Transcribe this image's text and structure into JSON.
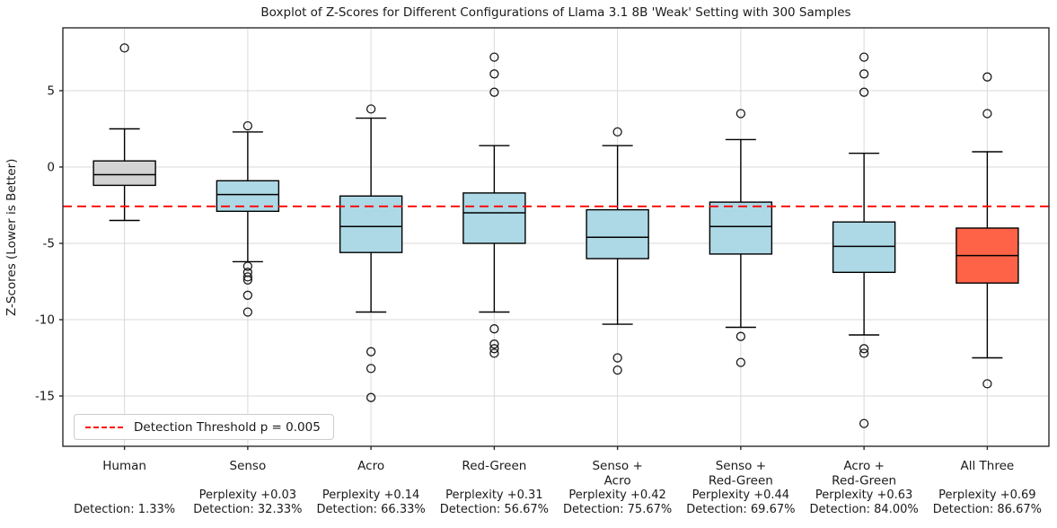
{
  "title": "Boxplot of Z-Scores for Different Configurations of Llama 3.1 8B 'Weak' Setting with 300 Samples",
  "y_axis": {
    "label": "Z-Scores (Lower is Better)",
    "ticks": [
      5,
      0,
      -5,
      -10,
      -15
    ]
  },
  "legend": {
    "label": "Detection Threshold p = 0.005"
  },
  "threshold": {
    "value": -2.576,
    "color": "#ff0000",
    "label": "Detection Threshold p = 0.005"
  },
  "colors": {
    "box_default": "#add8e6",
    "box_human": "#d3d3d3",
    "box_highlight": "#ff6347",
    "threshold_line": "#ff0000",
    "gridline": "#d9d9d9",
    "frame": "#2b2b2b"
  },
  "chart_data": {
    "type": "boxplot",
    "title": "Boxplot of Z-Scores for Different Configurations of Llama 3.1 8B 'Weak' Setting with 300 Samples",
    "ylabel": "Z-Scores (Lower is Better)",
    "ylim": [
      -18.3,
      9.2
    ],
    "grid": true,
    "legend_position": "lower left",
    "categories": [
      "Human",
      "Senso",
      "Acro",
      "Red-Green",
      "Senso + Acro",
      "Senso + Red-Green",
      "Acro + Red-Green",
      "All Three"
    ],
    "boxes": [
      {
        "label_lines": [
          "Human"
        ],
        "perplexity": "",
        "detection": "Detection: 1.33%",
        "whisker_low": -3.5,
        "q1": -1.2,
        "median": -0.5,
        "q3": 0.4,
        "whisker_high": 2.5,
        "outliers": [
          7.8
        ],
        "color": "#d3d3d3"
      },
      {
        "label_lines": [
          "Senso"
        ],
        "perplexity": "Perplexity +0.03",
        "detection": "Detection: 32.33%",
        "whisker_low": -6.2,
        "q1": -2.9,
        "median": -1.8,
        "q3": -0.9,
        "whisker_high": 2.3,
        "outliers": [
          2.7,
          -6.5,
          -6.9,
          -7.2,
          -7.4,
          -8.4,
          -9.5
        ],
        "color": "#add8e6"
      },
      {
        "label_lines": [
          "Acro"
        ],
        "perplexity": "Perplexity +0.14",
        "detection": "Detection: 66.33%",
        "whisker_low": -9.5,
        "q1": -5.6,
        "median": -3.9,
        "q3": -1.9,
        "whisker_high": 3.2,
        "outliers": [
          3.8,
          -12.1,
          -13.2,
          -15.1
        ],
        "color": "#add8e6"
      },
      {
        "label_lines": [
          "Red-Green"
        ],
        "perplexity": "Perplexity +0.31",
        "detection": "Detection: 56.67%",
        "whisker_low": -9.5,
        "q1": -5.0,
        "median": -3.0,
        "q3": -1.7,
        "whisker_high": 1.4,
        "outliers": [
          7.2,
          6.1,
          4.9,
          -10.6,
          -11.6,
          -11.9,
          -12.2
        ],
        "color": "#add8e6"
      },
      {
        "label_lines": [
          "Senso +",
          "Acro"
        ],
        "perplexity": "Perplexity +0.42",
        "detection": "Detection: 75.67%",
        "whisker_low": -10.3,
        "q1": -6.0,
        "median": -4.6,
        "q3": -2.8,
        "whisker_high": 1.4,
        "outliers": [
          2.3,
          -12.5,
          -13.3
        ],
        "color": "#add8e6"
      },
      {
        "label_lines": [
          "Senso +",
          "Red-Green"
        ],
        "perplexity": "Perplexity +0.44",
        "detection": "Detection: 69.67%",
        "whisker_low": -10.5,
        "q1": -5.7,
        "median": -3.9,
        "q3": -2.3,
        "whisker_high": 1.8,
        "outliers": [
          3.5,
          -11.1,
          -12.8
        ],
        "color": "#add8e6"
      },
      {
        "label_lines": [
          "Acro +",
          "Red-Green"
        ],
        "perplexity": "Perplexity +0.63",
        "detection": "Detection: 84.00%",
        "whisker_low": -11.0,
        "q1": -6.9,
        "median": -5.2,
        "q3": -3.6,
        "whisker_high": 0.9,
        "outliers": [
          7.2,
          6.1,
          4.9,
          -11.9,
          -12.2,
          -16.8
        ],
        "color": "#add8e6"
      },
      {
        "label_lines": [
          "All Three"
        ],
        "perplexity": "Perplexity +0.69",
        "detection": "Detection: 86.67%",
        "whisker_low": -12.5,
        "q1": -7.6,
        "median": -5.8,
        "q3": -4.0,
        "whisker_high": 1.0,
        "outliers": [
          5.9,
          3.5,
          -14.2
        ],
        "color": "#ff6347"
      }
    ]
  }
}
